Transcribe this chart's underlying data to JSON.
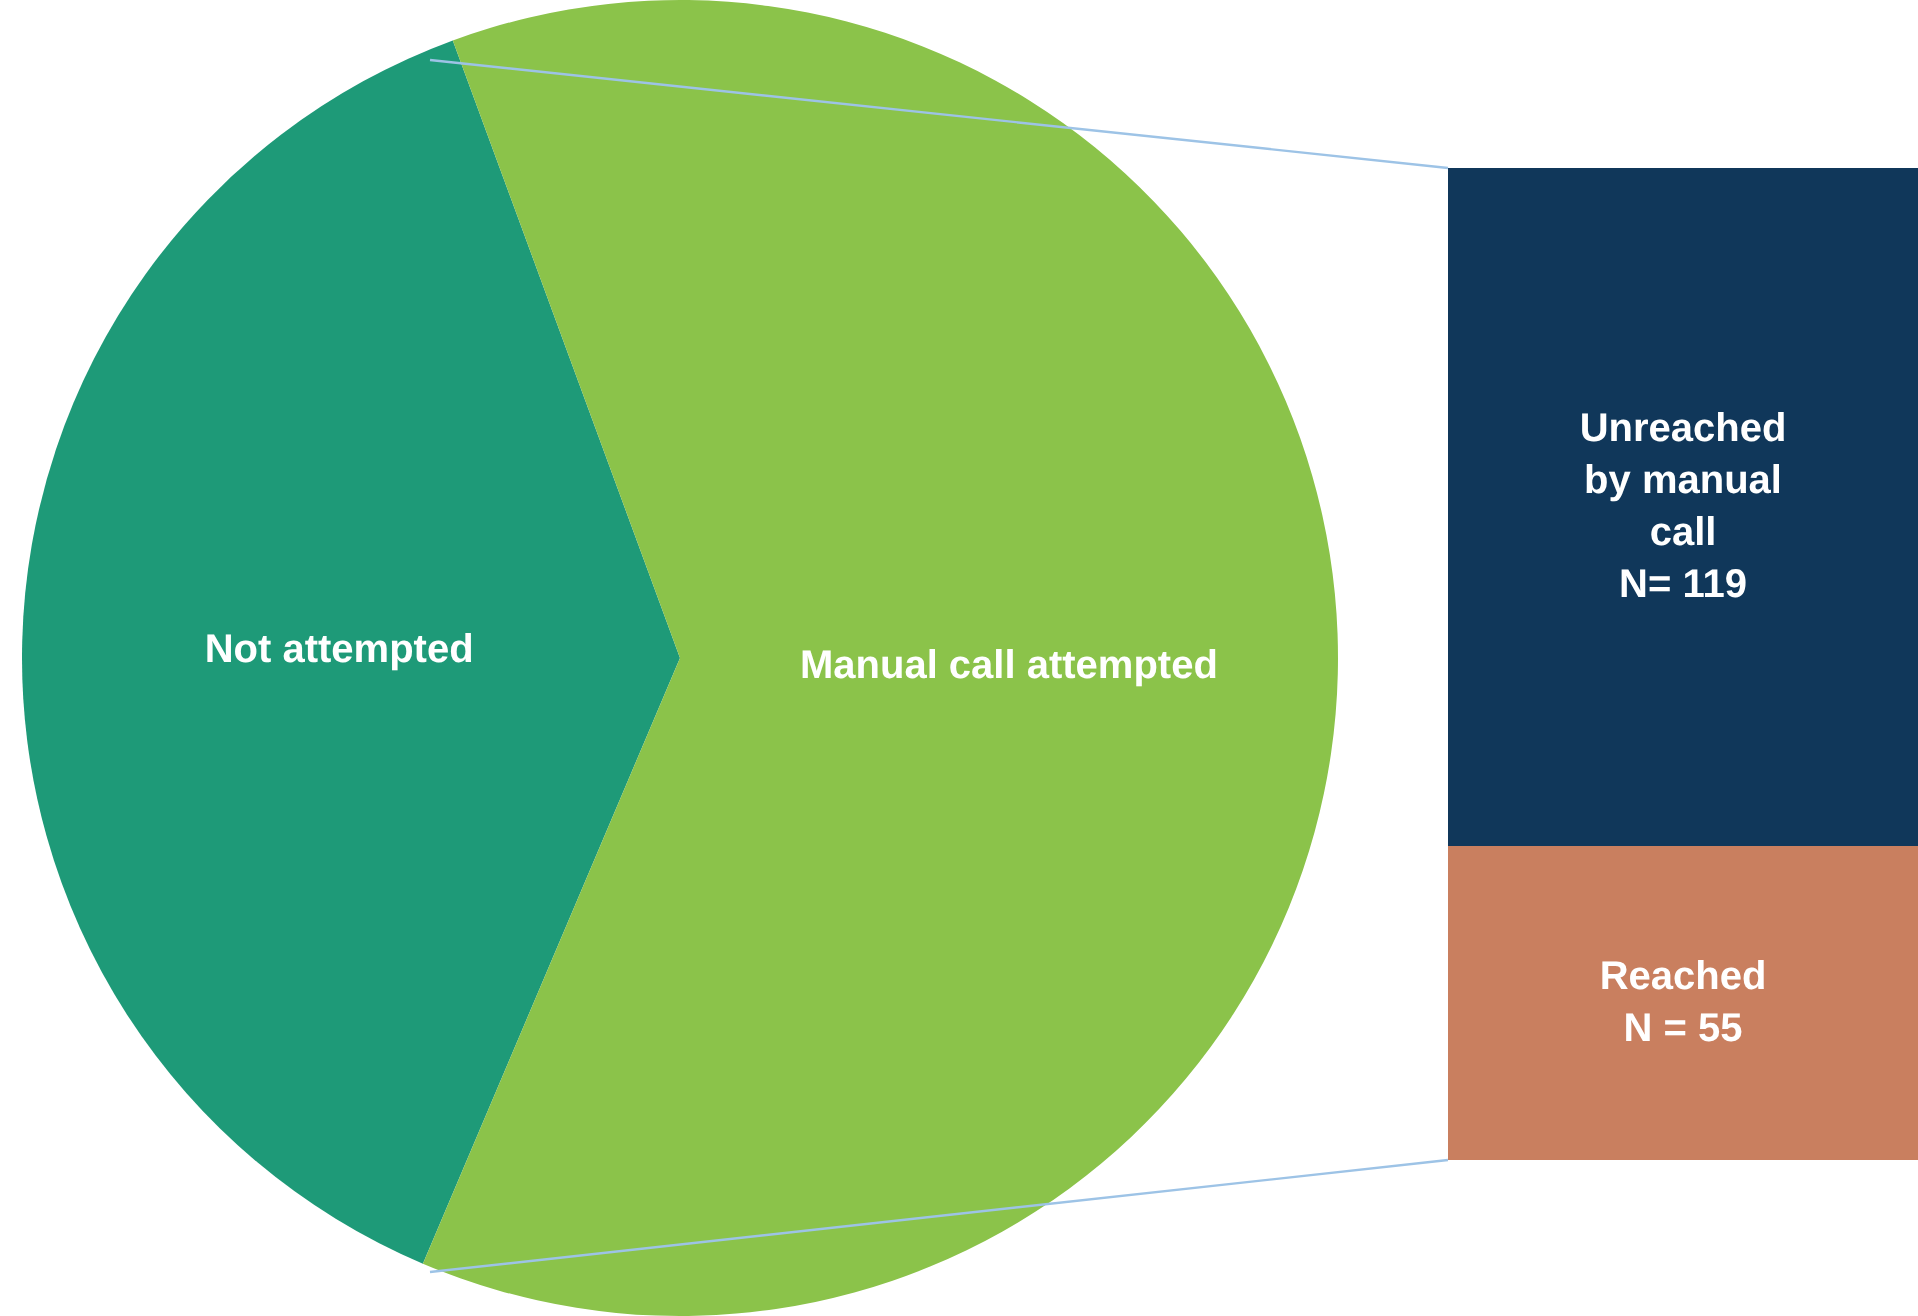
{
  "chart_data": [
    {
      "type": "pie",
      "categories": [
        "Not attempted",
        "Manual call attempted"
      ],
      "values": [
        38,
        62
      ],
      "colors": [
        "#1e9a78",
        "#8bc34a"
      ]
    },
    {
      "type": "bar",
      "stacked": true,
      "categories": [
        null
      ],
      "series": [
        {
          "name": "Reached",
          "color": "#c97f5f",
          "values": [
            55
          ],
          "value_labels": [
            "N = 55"
          ]
        },
        {
          "name": "Unreached by manual call",
          "color": "#10375a",
          "values": [
            119
          ],
          "value_labels": [
            "N= 119"
          ]
        }
      ]
    }
  ]
}
